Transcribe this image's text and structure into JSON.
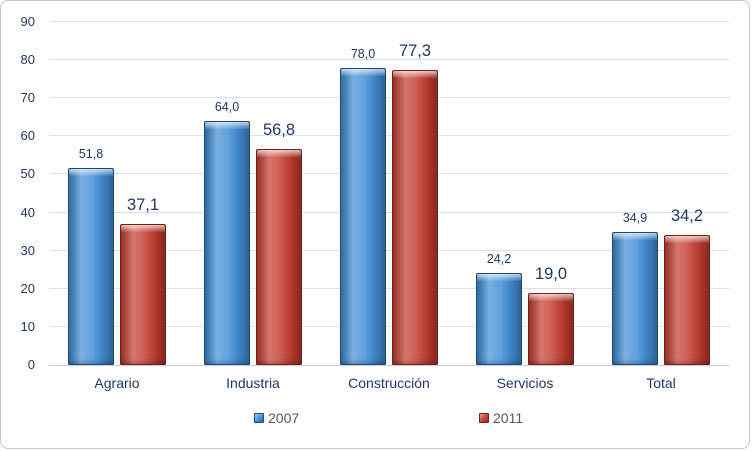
{
  "chart_data": {
    "type": "bar",
    "title": "",
    "xlabel": "",
    "ylabel": "",
    "categories": [
      "Agrario",
      "Industria",
      "Construcción",
      "Servicios",
      "Total"
    ],
    "series": [
      {
        "name": "2007",
        "values": [
          51.8,
          64.0,
          78.0,
          24.2,
          34.9
        ],
        "labels": [
          "51,8",
          "64,0",
          "78,0",
          "24,2",
          "34,9"
        ],
        "color": "#3F8DD6",
        "border_color": "#1C4C7C"
      },
      {
        "name": "2011",
        "values": [
          37.1,
          56.8,
          77.3,
          19.0,
          34.2
        ],
        "labels": [
          "37,1",
          "56,8",
          "77,3",
          "19,0",
          "34,2"
        ],
        "color": "#C23B2E",
        "border_color": "#7E1D15"
      }
    ],
    "ylim": [
      0,
      90
    ],
    "ytick_step": 10,
    "yticks": [
      0,
      10,
      20,
      30,
      40,
      50,
      60,
      70,
      80,
      90
    ],
    "grid": true,
    "legend_position": "bottom"
  },
  "colors": {
    "text_navy": "#1F3864",
    "legend_text": "#595959",
    "gridline": "#D8E1EA",
    "axis_line": "#C6CDD6",
    "chart_border": "#C3C6CA",
    "background": "#FFFFFF"
  }
}
